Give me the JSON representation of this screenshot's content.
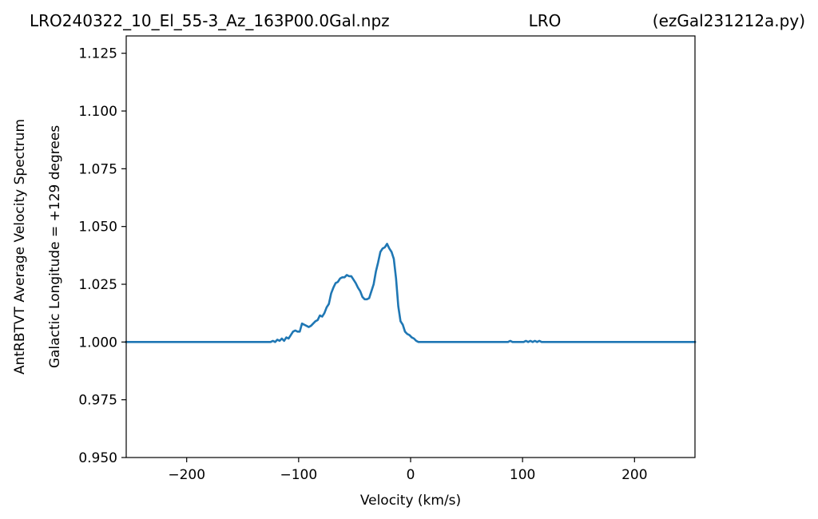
{
  "chart_data": {
    "type": "line",
    "title_left": "LRO240322_10_El_55-3_Az_163P00.0Gal.npz",
    "title_center": "LRO",
    "title_right": "(ezGal231212a.py)",
    "xlabel": "Velocity (km/s)",
    "ylabel_outer": "AntRBTVT Average Velocity Spectrum",
    "ylabel_inner": "Galactic Longitude = +129 degrees",
    "xlim": [
      -254,
      254
    ],
    "ylim": [
      0.95,
      1.1325
    ],
    "xticks": [
      -200,
      -100,
      0,
      100,
      200
    ],
    "xtick_labels": [
      "−200",
      "−100",
      "0",
      "100",
      "200"
    ],
    "yticks": [
      0.95,
      0.975,
      1.0,
      1.025,
      1.05,
      1.075,
      1.1,
      1.125
    ],
    "ytick_labels": [
      "0.950",
      "0.975",
      "1.000",
      "1.025",
      "1.050",
      "1.075",
      "1.100",
      "1.125"
    ],
    "grid": false,
    "line_color": "#1f77b4",
    "series": [
      {
        "x": [
          -254,
          -125,
          -123,
          -121,
          -119,
          -117,
          -115,
          -113,
          -111,
          -109,
          -107,
          -105,
          -103,
          -101,
          -99,
          -97,
          -95,
          -93,
          -91,
          -89,
          -87,
          -85,
          -83,
          -81,
          -79,
          -77,
          -75,
          -73,
          -71,
          -69,
          -67,
          -65,
          -63,
          -61,
          -59,
          -57,
          -55,
          -53,
          -51,
          -49,
          -47,
          -45,
          -43,
          -41,
          -39,
          -37,
          -35,
          -33,
          -31,
          -29,
          -27,
          -25,
          -23,
          -21,
          -19,
          -17,
          -15,
          -13,
          -11,
          -9,
          -7,
          -5,
          -3,
          -1,
          1,
          3,
          5,
          7,
          9,
          11,
          13,
          15,
          17,
          19,
          21,
          23,
          25,
          87,
          89,
          91,
          97,
          99,
          101,
          103,
          105,
          107,
          109,
          111,
          113,
          115,
          117,
          119,
          121,
          123,
          125,
          254
        ],
        "y": [
          1.0,
          1.0,
          1.0005,
          1.0,
          1.001,
          1.0005,
          1.0015,
          1.0005,
          1.002,
          1.0015,
          1.003,
          1.0045,
          1.005,
          1.0045,
          1.0045,
          1.008,
          1.0075,
          1.007,
          1.0065,
          1.007,
          1.008,
          1.009,
          1.0095,
          1.0115,
          1.011,
          1.0125,
          1.015,
          1.0165,
          1.021,
          1.0235,
          1.0255,
          1.026,
          1.0275,
          1.028,
          1.028,
          1.029,
          1.0285,
          1.0285,
          1.027,
          1.0255,
          1.0235,
          1.022,
          1.0195,
          1.0185,
          1.0185,
          1.019,
          1.022,
          1.025,
          1.0305,
          1.0345,
          1.039,
          1.0405,
          1.041,
          1.0425,
          1.0405,
          1.039,
          1.036,
          1.0275,
          1.0155,
          1.009,
          1.0075,
          1.0045,
          1.0035,
          1.003,
          1.002,
          1.0015,
          1.0005,
          1.0,
          1.0,
          1.0,
          1.0,
          1.0,
          1.0,
          1.0,
          1.0,
          1.0,
          1.0,
          1.0,
          1.0005,
          1.0,
          1.0,
          1.0,
          1.0,
          1.0005,
          1.0,
          1.0005,
          1.0,
          1.0005,
          1.0,
          1.0005,
          1.0,
          1.0,
          1.0,
          1.0,
          1.0,
          1.0
        ]
      }
    ]
  }
}
